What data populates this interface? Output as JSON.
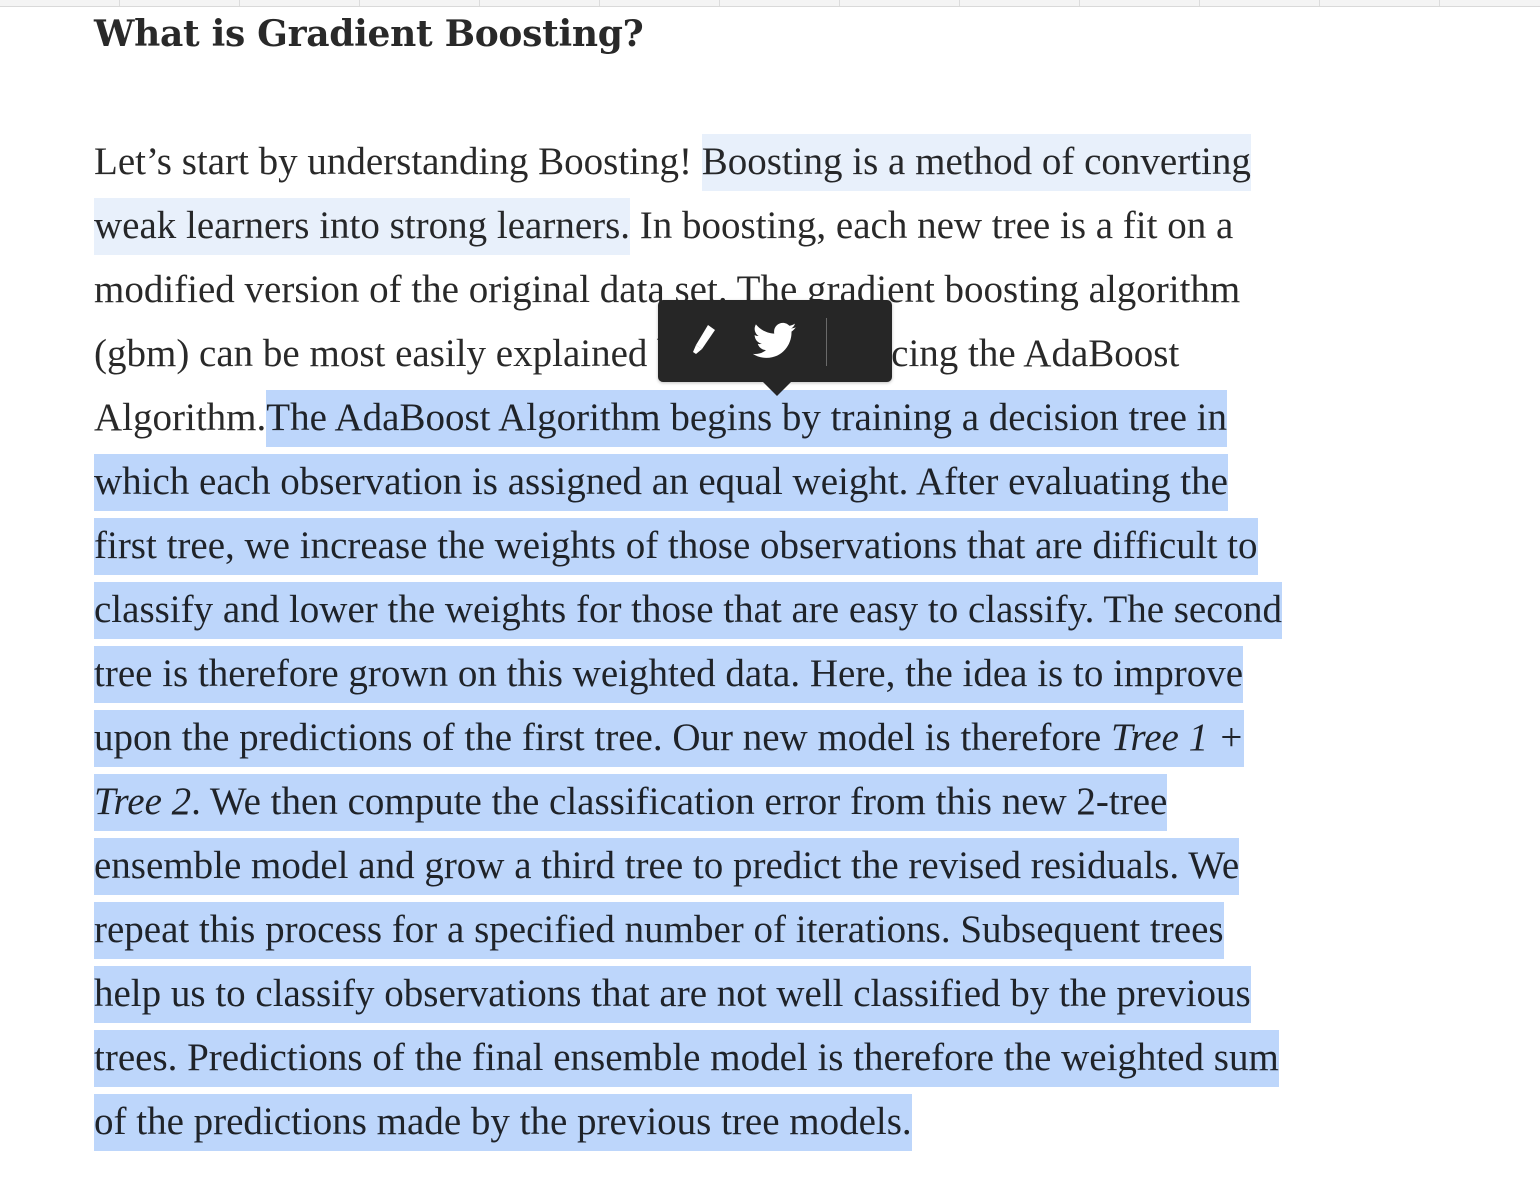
{
  "article": {
    "section_title": "What is Gradient Boosting?",
    "lines": [
      {
        "a": "Let’s start by understanding Boosting! ",
        "b": "Boosting is a method of converting"
      },
      {
        "b": "weak learners into strong learners.",
        "c": " In boosting, each new tree is a fit on a"
      },
      {
        "c": "modified version of the original data set. The gradient boosting algorithm"
      },
      {
        "c": "(gbm) can be most easily explained by first introducing the AdaBoost"
      },
      {
        "c": "Algorithm.",
        "d": "The AdaBoost Algorithm begins by training a decision tree in"
      },
      {
        "d": "which each observation is assigned an equal weight. After evaluating the"
      },
      {
        "d": "first tree, we increase the weights of those observations that are difficult to"
      },
      {
        "d": "classify and lower the weights for those that are easy to classify. The second"
      },
      {
        "d": "tree is therefore grown on this weighted data. Here, the idea is to improve"
      },
      {
        "d": "upon the predictions of the first tree. Our new model is therefore ",
        "e": "Tree 1 +"
      },
      {
        "e": "Tree 2",
        "d": ". We then compute the classification error from this new 2-tree"
      },
      {
        "d": "ensemble model and grow a third tree to predict the revised residuals. We"
      },
      {
        "d": "repeat this process for a specified number of iterations. Subsequent trees"
      },
      {
        "d": "help us to classify observations that are not well classified by the previous"
      },
      {
        "d": "trees. Predictions of the final ensemble model is therefore the weighted sum"
      },
      {
        "d": "of the predictions made by the previous tree models."
      }
    ]
  },
  "highlight_menu": {
    "icons": [
      "highlighter-icon",
      "twitter-icon"
    ],
    "colors": {
      "background": "#262626",
      "icon": "#ffffff"
    }
  },
  "colors": {
    "text": "rgba(0,0,0,0.84)",
    "existing_highlight": "#e8f0fb",
    "selection": "#bdd6fb"
  }
}
